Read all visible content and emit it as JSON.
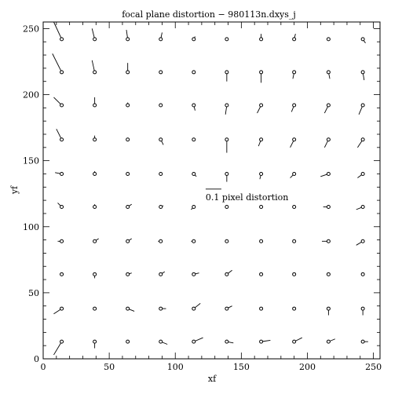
{
  "chart_data": {
    "type": "scatter",
    "subtype": "vector-field",
    "title": "focal plane distortion − 980113n.dxys_j",
    "xlabel": "xf",
    "ylabel": "yf",
    "xlim": [
      0,
      255
    ],
    "ylim": [
      0,
      255
    ],
    "xticks": [
      "0",
      "50",
      "100",
      "150",
      "200",
      "250"
    ],
    "yticks": [
      "0",
      "50",
      "100",
      "150",
      "200",
      "250"
    ],
    "grid": false,
    "scale_bar": {
      "label": "0.1 pixel distortion",
      "x": 123,
      "y": 128.5
    },
    "x": [
      14,
      39,
      64,
      89,
      114,
      139,
      165,
      190,
      216,
      242
    ],
    "y": [
      242,
      217,
      192,
      166,
      140,
      115,
      89,
      64,
      38,
      13
    ],
    "vectors": [
      [
        [
          -6,
          13
        ],
        [
          -2,
          8
        ],
        [
          -1,
          7
        ],
        [
          1,
          5
        ],
        [
          1,
          2
        ],
        [
          0,
          0
        ],
        [
          0,
          4
        ],
        [
          1,
          4
        ],
        [
          0,
          0
        ],
        [
          2,
          -3
        ]
      ],
      [
        [
          -7,
          14
        ],
        [
          -2,
          9
        ],
        [
          0,
          7
        ],
        [
          0,
          0
        ],
        [
          0,
          0
        ],
        [
          0,
          -7
        ],
        [
          0,
          -8
        ],
        [
          -1,
          -5
        ],
        [
          1,
          -5
        ],
        [
          1,
          -6
        ]
      ],
      [
        [
          -6,
          6
        ],
        [
          0,
          6
        ],
        [
          0,
          2
        ],
        [
          0,
          0
        ],
        [
          1,
          -4
        ],
        [
          -1,
          -7
        ],
        [
          -3,
          -6
        ],
        [
          -2,
          -5
        ],
        [
          -3,
          -6
        ],
        [
          -3,
          -7
        ]
      ],
      [
        [
          -4,
          8
        ],
        [
          0,
          3
        ],
        [
          0,
          0
        ],
        [
          2,
          -4
        ],
        [
          0,
          0
        ],
        [
          0,
          -10
        ],
        [
          -2,
          -5
        ],
        [
          -3,
          -6
        ],
        [
          -3,
          -6
        ],
        [
          -4,
          -6
        ]
      ],
      [
        [
          -5,
          1
        ],
        [
          0,
          2
        ],
        [
          -1,
          1
        ],
        [
          0,
          0
        ],
        [
          2,
          -2
        ],
        [
          0,
          -6
        ],
        [
          -1,
          -4
        ],
        [
          -3,
          -3
        ],
        [
          -6,
          -2
        ],
        [
          -4,
          -3
        ]
      ],
      [
        [
          -3,
          3
        ],
        [
          0,
          2
        ],
        [
          3,
          2
        ],
        [
          2,
          1
        ],
        [
          -2,
          -2
        ],
        [
          0,
          0
        ],
        [
          0,
          0
        ],
        [
          0,
          0
        ],
        [
          -4,
          0
        ],
        [
          -5,
          -2
        ]
      ],
      [
        [
          -3,
          0
        ],
        [
          3,
          2
        ],
        [
          3,
          2
        ],
        [
          -2,
          0
        ],
        [
          -2,
          0
        ],
        [
          0,
          0
        ],
        [
          0,
          0
        ],
        [
          0,
          0
        ],
        [
          -5,
          0
        ],
        [
          -5,
          -3
        ]
      ],
      [
        [
          0,
          0
        ],
        [
          0,
          -3
        ],
        [
          3,
          1
        ],
        [
          3,
          2
        ],
        [
          4,
          1
        ],
        [
          4,
          3
        ],
        [
          0,
          0
        ],
        [
          0,
          0
        ],
        [
          0,
          0
        ],
        [
          0,
          0
        ]
      ],
      [
        [
          -6,
          -4
        ],
        [
          0,
          0
        ],
        [
          5,
          -2
        ],
        [
          4,
          0
        ],
        [
          5,
          4
        ],
        [
          4,
          2
        ],
        [
          0,
          0
        ],
        [
          0,
          0
        ],
        [
          0,
          -5
        ],
        [
          0,
          -5
        ]
      ],
      [
        [
          -6,
          -10
        ],
        [
          0,
          -5
        ],
        [
          0,
          0
        ],
        [
          5,
          -2
        ],
        [
          7,
          3
        ],
        [
          5,
          -1
        ],
        [
          7,
          1
        ],
        [
          6,
          3
        ],
        [
          5,
          2
        ],
        [
          4,
          0
        ]
      ]
    ]
  }
}
